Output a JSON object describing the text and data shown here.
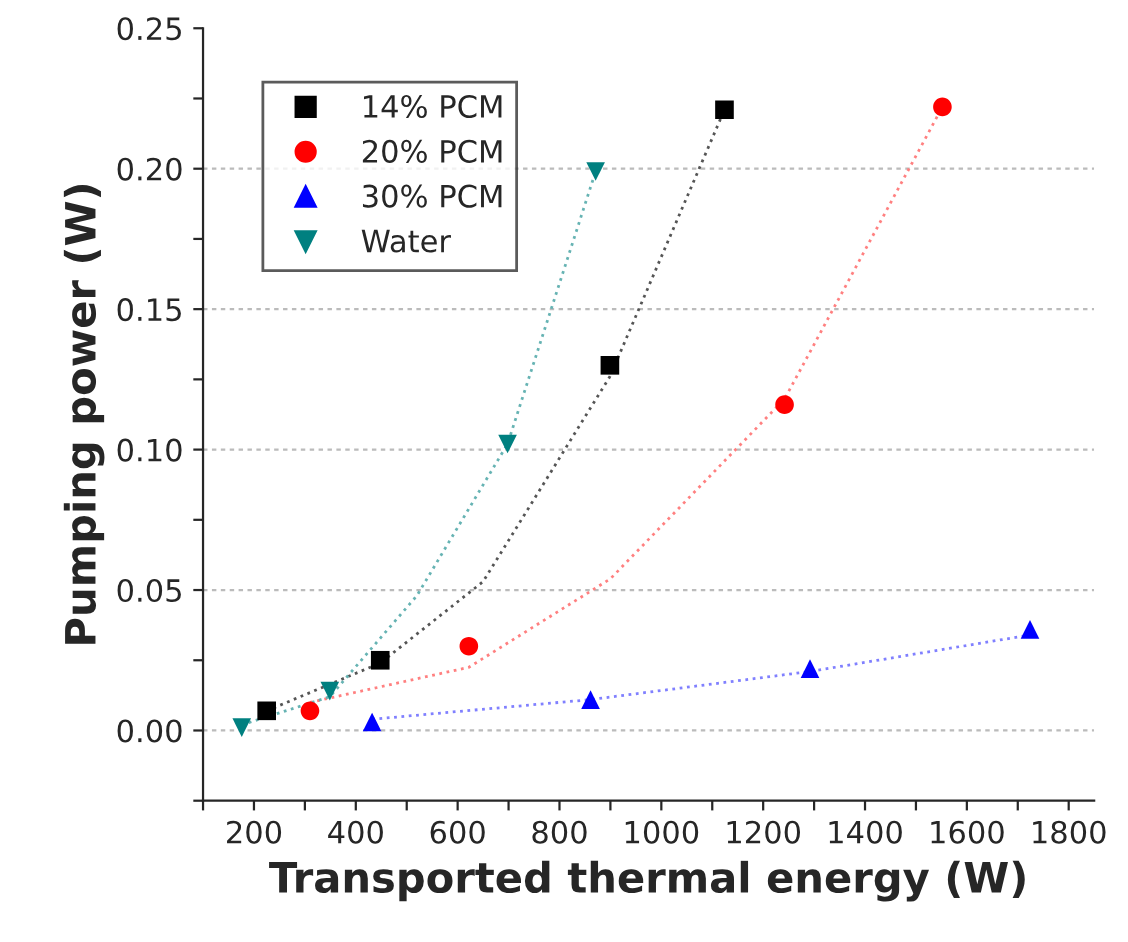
{
  "chart_data": {
    "type": "scatter",
    "xlabel": "Transported thermal energy (W)",
    "ylabel": "Pumping power (W)",
    "xlim": [
      100,
      1850
    ],
    "ylim": [
      -0.025,
      0.25
    ],
    "xticks": [
      {
        "value": 100,
        "label": null
      },
      200,
      {
        "value": 300,
        "label": null
      },
      400,
      {
        "value": 500,
        "label": null
      },
      600,
      {
        "value": 700,
        "label": null
      },
      800,
      {
        "value": 900,
        "label": null
      },
      1000,
      {
        "value": 1100,
        "label": null
      },
      1200,
      {
        "value": 1300,
        "label": null
      },
      1400,
      {
        "value": 1500,
        "label": null
      },
      1600,
      {
        "value": 1700,
        "label": null
      },
      1800
    ],
    "yticks": [
      {
        "value": -0.025,
        "label": null
      },
      {
        "value": 0,
        "label": "0.00"
      },
      {
        "value": 0.025,
        "label": null
      },
      {
        "value": 0.05,
        "label": "0.05"
      },
      {
        "value": 0.075,
        "label": null
      },
      {
        "value": 0.1,
        "label": "0.10"
      },
      {
        "value": 0.125,
        "label": null
      },
      {
        "value": 0.15,
        "label": "0.15"
      },
      {
        "value": 0.175,
        "label": null
      },
      {
        "value": 0.2,
        "label": "0.20"
      },
      {
        "value": 0.225,
        "label": null
      },
      {
        "value": 0.25,
        "label": "0.25"
      }
    ],
    "grid": "y",
    "legend": "top left",
    "series": [
      {
        "name": "14% PCM",
        "color": "#000000",
        "marker": "square",
        "x": [
          225,
          448,
          899,
          1124
        ],
        "values": [
          0.007,
          0.025,
          0.13,
          0.221
        ]
      },
      {
        "name": "20% PCM",
        "color": "#ff0000",
        "marker": "circle",
        "x": [
          310,
          622,
          1242,
          1552
        ],
        "values": [
          0.007,
          0.03,
          0.116,
          0.222
        ]
      },
      {
        "name": "30% PCM",
        "color": "#0000ff",
        "marker": "triangle",
        "x": [
          432,
          861,
          1292,
          1724
        ],
        "values": [
          0.003,
          0.011,
          0.022,
          0.036
        ]
      },
      {
        "name": "Water",
        "color": "#008080",
        "marker": "triangle_down",
        "x": [
          176,
          349,
          698,
          871
        ],
        "values": [
          0.001,
          0.014,
          0.102,
          0.199
        ]
      },
      {
        "type": "line",
        "color": "#555555",
        "line_style": "dotted",
        "x": [
          225,
          448,
          650,
          899,
          1124
        ],
        "values": [
          0.007,
          0.024,
          0.053,
          0.126,
          0.221
        ]
      },
      {
        "type": "line",
        "color": "#ff8080",
        "line_style": "dotted",
        "x": [
          310,
          622,
          900,
          1242,
          1552
        ],
        "values": [
          0.01,
          0.0225,
          0.054,
          0.118,
          0.222
        ]
      },
      {
        "type": "line",
        "color": "#8080ff",
        "line_style": "dotted",
        "x": [
          432,
          861,
          1292,
          1724
        ],
        "values": [
          0.004,
          0.011,
          0.021,
          0.034
        ]
      },
      {
        "type": "line",
        "color": "#66b3b3",
        "line_style": "dotted",
        "x": [
          176,
          349,
          520,
          698,
          871
        ],
        "values": [
          0.002,
          0.012,
          0.048,
          0.102,
          0.199
        ]
      }
    ]
  }
}
